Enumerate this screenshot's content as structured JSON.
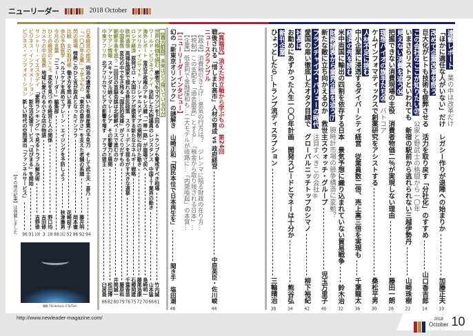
{
  "header": {
    "title": "ニューリーダー",
    "edition": "2018 October",
    "stripe_colors": [
      "#b02030",
      "#c08030",
      "#802040",
      "#d0a040",
      "#602030",
      "#b03040",
      "#c09040"
    ]
  },
  "colors": {
    "gold": "#a88c50",
    "olive": "#7b8a3c",
    "crimson": "#b01f3a",
    "navy": "#1b1f5c",
    "divider": "#b5b5b5"
  },
  "sections": {
    "right": {
      "lines": [
        {
          "label": "連載レポート",
          "sub": "業の中は改革だけ"
        },
        {
          "text": "「ほかに適任な人がいない」だけ　レガシー作りが退陣への始まりか",
          "author": "加藤正夫",
          "page": "10"
        },
        {
          "label": "改めて企業改革を問う"
        },
        {
          "text": "巨大化がヒトも技術も疲弊させる　活力を取り戻す「分社化」のすすめ",
          "author": "山口香吉郎",
          "page": "14"
        },
        {
          "label": "この会社のここが知りたい㉗",
          "sub": "公家と野武士の格闘から一〇年"
        },
        {
          "text": "いまさらリストラといわれても　新宿の駅前から逃れられない三越伊勢丹",
          "author": "山崎珠樹",
          "page": "22"
        },
        {
          "label": "見えない消費を追う㉞"
        },
        {
          "text": "把握できない消費現場の主役　消費者物価二％が実現しない理由",
          "author": "藤田一朗",
          "page": "26"
        },
        {
          "label": "理想バイオの旗手たち⑳",
          "sub": "バトコア"
        },
        {
          "text": "ケムインフォマティックスで創薬研究をアシストする",
          "author": "桑松平男",
          "page": "30"
        },
        {
          "label": "人材不足に挑む"
        },
        {
          "text": "中小企業に浸透するダイバーシティ経営　従業員数二倍、売上高三倍を実現も",
          "author": "千葉龍太",
          "page": "36"
        },
        {
          "label": "経済の先を読む"
        },
        {
          "text": "米中両国に輸出の四割を依存する日本　景気予想に織り込まれていない貿易戦争",
          "author": "鈴木治",
          "page": "32"
        },
        {
          "label": "財務諸表から業界企業を追う⑺",
          "sub": "腕時計市場の競争構造に変動？"
        },
        {
          "text": "新たな敵に立ち向かえるのか　救世主スウォッチ・グループ",
          "author": "児玉万里子",
          "page": "40"
        },
        {
          "label": "フランチャイズ・バリューの時代",
          "sub": "注目すべきこの会社⑧"
        },
        {
          "text": "愛国の扉い徹底したオタク目線で　グローバルニッチトップのシマノ",
          "author": "柳下裕紀",
          "page": "42"
        },
        {
          "label": "社長は"
        },
        {
          "text": "お勤めにあずかった人生一〇〇年計画　開発スピードとマネーは十分か",
          "author": "熊谷弘",
          "page": "34"
        },
        {
          "label": "新刊企業"
        },
        {
          "text": "ひょっとしたら…トランプ流ディスラプション",
          "author": "三輪晴治",
          "page": "38"
        }
      ]
    },
    "middle": {
      "lines": [
        {
          "heading": "【異端児】消えた対立軸から学ぶもの　第24回"
        },
        {
          "text": "戦後される「惜しまれ高市」人材の育成 vs 政府経営",
          "author": "中原英臣・佐川峻",
          "page": "44"
        },
        {
          "heading": "ニュースクランブル"
        },
        {
          "sub": "【政治】消費税引き上げ…景気の行方は？　ジレンマに陥る財政の在り方…"
        },
        {
          "sub": "【税制】この支配を「過去最高」とする…「税金から取り残される日本」…"
        },
        {
          "sub": "【企業】低金利で金融緩和も…二大モデルが岐路に…「内需喚起」の本質…"
        },
        {
          "heading": "【ニューリーダーインタビュー】"
        },
        {
          "text": "幻の「新東京オリンピック」の謎解き　山崎正和「国民本位で日本再生を」",
          "author": "聞き手　塩田潮",
          "page": "48"
        }
      ]
    },
    "olive": {
      "lines": [
        {
          "heading": "【蒼天航路】未来はどう描いているのか"
        },
        {
          "label": "世界の株価を読む",
          "text": "勝者でもマラソンを上回る　トランプも警戒すべき相場",
          "author": "竹内誠",
          "page": "61"
        },
        {
          "label": "ワールド・ビジネス・アイ",
          "text": "決起した大物議員のレジスタンス　中国ＩＴ業界の動き",
          "author": "山本猛",
          "page": "66"
        },
        {
          "label": "海外レポート",
          "text": "習近平政権のアキレス腱「一帯一路」が崩壊寸前へ",
          "author": "島崎明一",
          "page": "70"
        },
        {
          "label": "アメリカ・インサイト",
          "text": "ソーシャルメディアの規制に向けた動き",
          "author": "藤尾浩康",
          "page": "72"
        },
        {
          "label": "ロシア経済",
          "text": "原発ゼロ・大国ロシアが模索する新たなエネルギー戦略",
          "author": "石郷岡建",
          "page": "75"
        },
        {
          "label": "欧州通信",
          "text": "高福祉国家で揺れる移民政策　スウェーデンを揺るがす大きな選挙",
          "author": "千葉香苗",
          "page": "76"
        },
        {
          "label": "中国事情",
          "text": "変化の中で生き残る「国民的英雄」がつくりだすもの",
          "author": "藤原和",
          "page": "79"
        },
        {
          "label": "朝鮮半島を追う",
          "text": "二回目の首脳会談は北朝鮮ペースで進むのか",
          "author": "井関誠一",
          "page": "80"
        },
        {
          "label": "アセアン情報",
          "text": "スキャンダル続くマレーシア　その影響力と展開",
          "author": "松田博",
          "page": "82"
        },
        {
          "label": "中東アフリカ",
          "text": "北アフリカでリビアの影響を増す　アラブの盟主",
          "author": "臼居亜",
          "page": "86"
        }
      ]
    },
    "gold": {
      "lines": [
        {
          "label": "日本経営の底流",
          "text": "明治の遺産を築いた有楽産業の予見力　そして武士夫・喜乃",
          "page": "94"
        },
        {
          "label": "「一〇〇年企業」で学ぶもの",
          "text": "「東京の豊かさ」を支えた老舗の系譜",
          "author": "藤井明",
          "page": "92"
        },
        {
          "label": "閃の現場",
          "text": "情熱このひと言が原点となったインフラ",
          "author": "岡本徹",
          "page": "86"
        },
        {
          "label": "比較　女の取材帳",
          "text": "働き方を問い直す",
          "author": "花崎桜子",
          "page": "52"
        },
        {
          "label": "歩の予防医学",
          "text": "ヘルスケアを高めてブレーン・エイジングを予防しよう",
          "author": "秋津壽男",
          "page": "102"
        },
        {
          "label": "今月の言葉",
          "text": "「ニューリーダー」編集部",
          "page": "88"
        },
        {
          "label": "ひとの経営のこころ",
          "text": "変化を見つめる経営と人の関係",
          "author": "野口均",
          "page": "106"
        },
        {
          "label": "カメラの中の風景",
          "text": "地域に愛される小さな店の物語",
          "author": "吉田修",
          "page": "3"
        },
        {
          "label": "サントリー・イエスタデイ",
          "text": "「愛称ランキング」で見るトラブル解決術",
          "author": "吉野修",
          "page": "100"
        },
        {
          "label": "ビジネス・インフォメーション",
          "text": "新生活応援サービス「はぴまる」を開始",
          "page": "91"
        },
        {
          "label": "ビジネス・インフォメーション",
          "text": "新しい時代の空間演出「ファンネルサービス」",
          "page": "96"
        }
      ],
      "note": "【その他の記事】は休載しました"
    }
  },
  "photo": {
    "caption": "撮影 Thinkstock ©Ta/Tam"
  },
  "footer": {
    "url": "http://www.newleader-magazine.com/",
    "folio_year": "2018",
    "folio_month": "October",
    "folio_page": "10",
    "folio_colors": [
      "#b02030",
      "#c08a30",
      "#1b1f5c"
    ]
  }
}
